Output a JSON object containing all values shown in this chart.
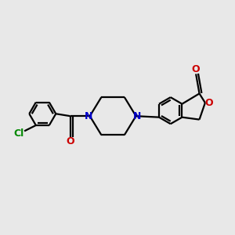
{
  "bg_color": "#e8e8e8",
  "bond_color": "#000000",
  "n_color": "#0000cc",
  "o_color": "#cc0000",
  "cl_color": "#008800",
  "line_width": 1.6,
  "figsize": [
    3.0,
    3.0
  ],
  "dpi": 100,
  "xlim": [
    -4.5,
    5.5
  ],
  "ylim": [
    -3.5,
    3.5
  ]
}
